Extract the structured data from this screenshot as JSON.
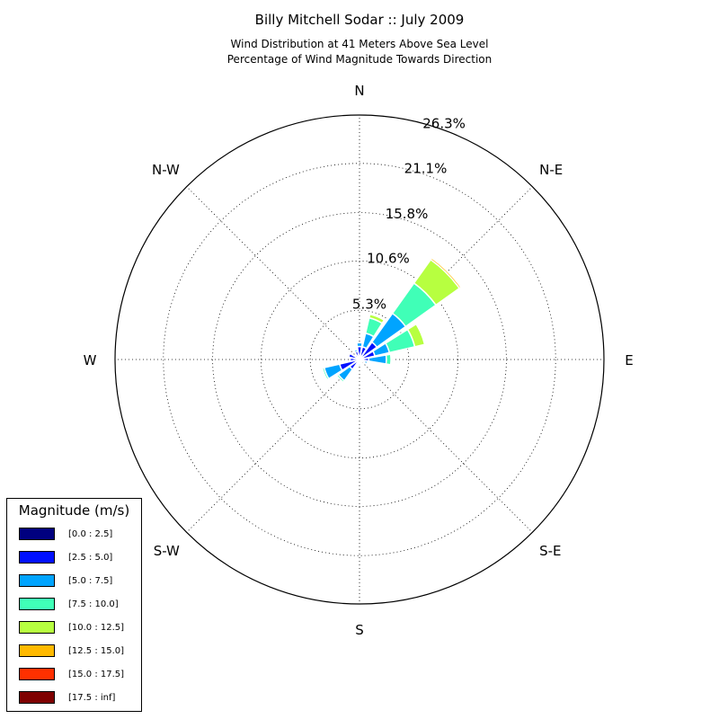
{
  "title": "Billy Mitchell Sodar :: July 2009",
  "subtitle_line1": "Wind Distribution at 41 Meters Above Sea Level",
  "subtitle_line2": "Percentage of Wind Magnitude Towards Direction",
  "chart_data": {
    "type": "windrose",
    "title": "Billy Mitchell Sodar :: July 2009",
    "radial_ticks": [
      "5.3%",
      "10.6%",
      "15.8%",
      "21.1%",
      "26.3%"
    ],
    "radial_tick_values": [
      5.3,
      10.6,
      15.8,
      21.1,
      26.3
    ],
    "radial_max": 26.3,
    "direction_labels": [
      "N",
      "N-E",
      "E",
      "S-E",
      "S",
      "S-W",
      "W",
      "N-W"
    ],
    "sectors": [
      0,
      22.5,
      45,
      67.5,
      90,
      112.5,
      135,
      157.5,
      180,
      202.5,
      225,
      247.5,
      270,
      292.5,
      315,
      337.5
    ],
    "bins": [
      "[0.0 : 2.5]",
      "[2.5 : 5.0]",
      "[5.0 : 7.5]",
      "[7.5 : 10.0]",
      "[10.0 : 12.5]",
      "[12.5 : 15.0]",
      "[15.0 : 17.5]",
      "[17.5 : inf]"
    ],
    "colors": [
      "#00007f",
      "#0010ff",
      "#00a4ff",
      "#40ffb7",
      "#b7ff40",
      "#ffb900",
      "#ff3000",
      "#7f0000"
    ],
    "cumulative_percent": [
      [
        0.4,
        1.4,
        1.8,
        1.8,
        1.8,
        1.8,
        1.8,
        1.8
      ],
      [
        0.4,
        1.4,
        2.9,
        4.6,
        5.0,
        5.0,
        5.0,
        5.0
      ],
      [
        0.4,
        2.3,
        6.1,
        10.1,
        13.2,
        13.4,
        13.4,
        13.4
      ],
      [
        0.4,
        1.7,
        3.3,
        6.1,
        7.2,
        7.3,
        7.3,
        7.3
      ],
      [
        0.3,
        1.0,
        2.9,
        3.4,
        3.5,
        3.5,
        3.5,
        3.5
      ],
      [
        0.2,
        0.6,
        0.9,
        0.9,
        0.9,
        0.9,
        0.9,
        0.9
      ],
      [
        0.1,
        0.3,
        0.4,
        0.4,
        0.4,
        0.4,
        0.4,
        0.4
      ],
      [
        0.1,
        0.2,
        0.2,
        0.2,
        0.2,
        0.2,
        0.2,
        0.2
      ],
      [
        0.2,
        0.5,
        0.7,
        0.7,
        0.7,
        0.7,
        0.7,
        0.7
      ],
      [
        0.1,
        0.2,
        0.2,
        0.2,
        0.2,
        0.2,
        0.2,
        0.2
      ],
      [
        0.3,
        1.3,
        2.8,
        3.0,
        3.0,
        3.0,
        3.0,
        3.0
      ],
      [
        0.4,
        2.2,
        3.9,
        4.1,
        4.1,
        4.1,
        4.1,
        4.1
      ],
      [
        0.3,
        1.0,
        1.0,
        1.0,
        1.0,
        1.0,
        1.0,
        1.0
      ],
      [
        0.3,
        1.2,
        1.2,
        1.2,
        1.2,
        1.2,
        1.2,
        1.2
      ],
      [
        0.2,
        0.4,
        0.4,
        0.4,
        0.4,
        0.4,
        0.4,
        0.4
      ],
      [
        0.2,
        0.9,
        1.1,
        1.1,
        1.1,
        1.1,
        1.1,
        1.1
      ]
    ],
    "legend_title": "Magnitude (m/s)",
    "legend_placement": "lower-left",
    "grid": true
  }
}
